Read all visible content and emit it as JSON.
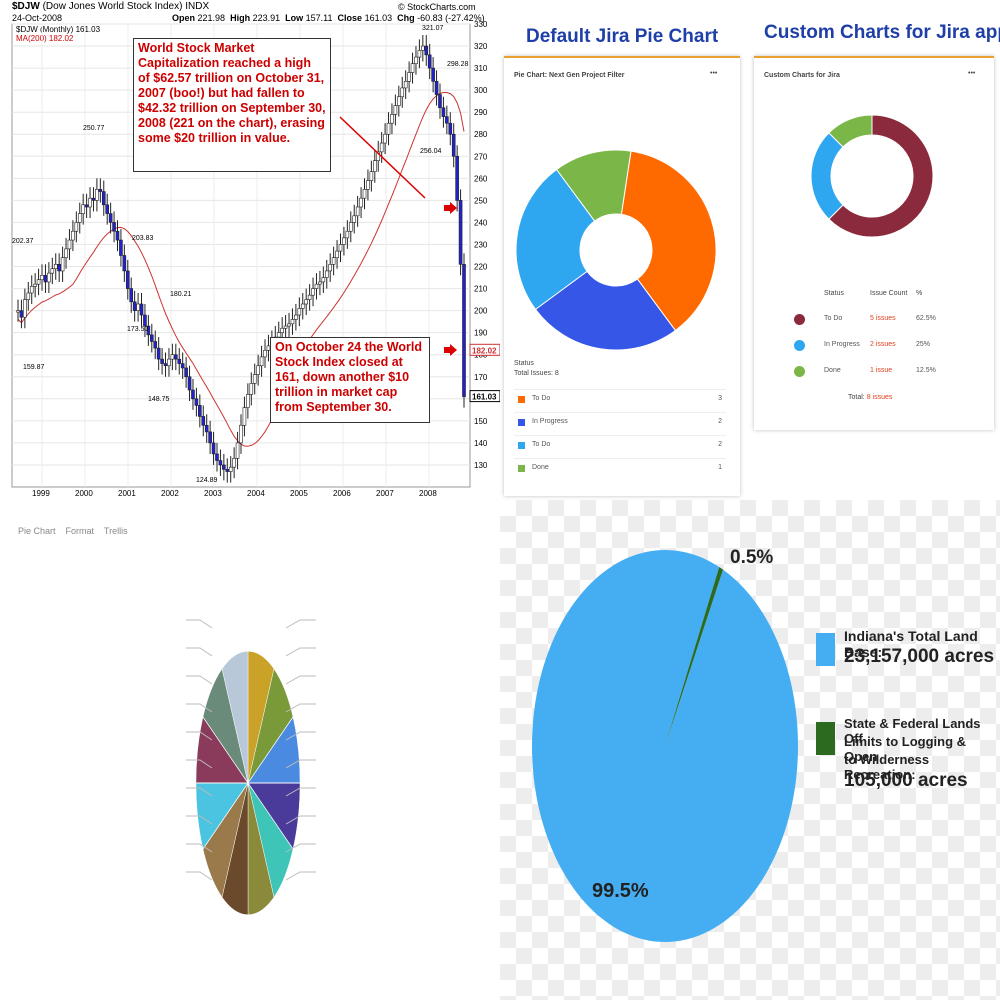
{
  "stock": {
    "symbol": "$DJW",
    "name": "(Dow Jones World Stock Index)",
    "exchange": "INDX",
    "date": "24-Oct-2008",
    "source": "© StockCharts.com",
    "legend_line": "$DJW (Monthly) 161.03",
    "ma_line": "MA(200) 182.02",
    "open_label": "Open",
    "open": "221.98",
    "high_label": "High",
    "high": "223.91",
    "low_label": "Low",
    "low": "157.11",
    "close_label": "Close",
    "close": "161.03",
    "chg_label": "Chg",
    "chg": "-60.83 (-27.42%)",
    "note1": "World Stock Market Capitalization reached a high of $62.57 trillion on October 31, 2007 (boo!) but had fallen to $42.32 trillion on September 30, 2008 (221 on the chart), erasing some $20 trillion in value.",
    "note2": "On October 24 the World Stock Index closed at 161, down another $10 trillion in market cap from September 30.",
    "colors": {
      "bars": "#2222cc",
      "note_text": "#cc0000",
      "arrow": "#dd0000"
    }
  },
  "jira": {
    "default_title": "Default Jira Pie Chart",
    "custom_title": "Custom Charts for Jira app",
    "default_card_title": "Pie Chart: Next Gen Project Filter",
    "default_menu": "•••",
    "default_status_heading": "Status",
    "default_total": "Total Issues: 8",
    "default_rows": [
      {
        "label": "To Do",
        "value": "3",
        "color": "#ff6a00"
      },
      {
        "label": "In Progress",
        "value": "2",
        "color": "#3656e8"
      },
      {
        "label": "To Do",
        "value": "2",
        "color": "#2fa7f0"
      },
      {
        "label": "Done",
        "value": "1",
        "color": "#7ab648"
      }
    ],
    "custom_card_title": "Custom Charts for Jira",
    "custom_menu": "•••",
    "custom_headers": [
      "Status",
      "Issue Count",
      "%"
    ],
    "custom_rows": [
      {
        "label": "To Do",
        "count": "5 issues",
        "pct": "62.5%",
        "color": "#8b2a3c"
      },
      {
        "label": "In Progress",
        "count": "2 issues",
        "pct": "25%",
        "color": "#2fa7f0"
      },
      {
        "label": "Done",
        "count": "1 issue",
        "pct": "12.5%",
        "color": "#7ab648"
      }
    ],
    "custom_total_label": "Total:",
    "custom_total_value": "8 issues"
  },
  "small_pie": {
    "toolbar": [
      "Pie Chart",
      "Format",
      "Trellis"
    ],
    "slice_colors": [
      "#c9a227",
      "#7a9a3a",
      "#4a8ae0",
      "#4a3a9a",
      "#3fc4b8",
      "#8a8a3a",
      "#6a4a2a",
      "#9a7a4a",
      "#4ac4e0",
      "#8a3a5a",
      "#6a8a7a",
      "#b8c8d8"
    ]
  },
  "indiana": {
    "label_small_pct": "0.5%",
    "label_big_pct": "99.5%",
    "legend1_line1": "Indiana's Total Land Base:",
    "legend1_line2": "23,157,000 acres",
    "legend2_line1": "State & Federal Lands Off",
    "legend2_line2": "Limits to Logging & Open",
    "legend2_line3": "to Wilderness Recreation:",
    "legend2_line4": "105,000 acres",
    "colors": {
      "base": "#45aef2",
      "small": "#2c6b1f"
    }
  },
  "chart_data": [
    {
      "type": "bar",
      "title": "$DJW (Dow Jones World Stock Index)",
      "x": [
        "1999",
        "2000",
        "2001",
        "2002",
        "2003",
        "2004",
        "2005",
        "2006",
        "2007",
        "2008"
      ],
      "ylim": [
        120,
        330
      ],
      "yticks": [
        130,
        140,
        150,
        160,
        170,
        180,
        190,
        200,
        210,
        220,
        230,
        240,
        250,
        260,
        270,
        280,
        290,
        300,
        310,
        320,
        330
      ],
      "monthly_close": [
        200,
        197,
        205,
        208,
        211,
        212,
        214,
        216,
        213,
        217,
        219,
        221,
        218,
        224,
        228,
        232,
        236,
        240,
        244,
        248,
        247,
        251,
        250,
        255,
        254,
        248,
        244,
        240,
        236,
        232,
        225,
        218,
        210,
        204,
        200,
        203,
        198,
        193,
        189,
        186,
        183,
        178,
        176,
        175,
        178,
        180,
        178,
        176,
        174,
        170,
        164,
        160,
        157,
        152,
        148,
        145,
        140,
        135,
        132,
        130,
        128,
        127,
        129,
        133,
        140,
        148,
        156,
        162,
        167,
        171,
        175,
        179,
        182,
        184,
        186,
        188,
        190,
        192,
        193,
        194,
        196,
        198,
        201,
        203,
        205,
        207,
        210,
        212,
        213,
        215,
        218,
        221,
        224,
        227,
        230,
        233,
        236,
        240,
        243,
        247,
        251,
        255,
        259,
        263,
        268,
        272,
        276,
        280,
        285,
        289,
        293,
        297,
        301,
        304,
        308,
        312,
        315,
        318,
        320,
        316,
        310,
        304,
        298,
        292,
        288,
        285,
        280,
        270,
        250,
        221,
        161
      ],
      "annotations": [
        "321.07",
        "298.28",
        "256.04",
        "250.77",
        "202.37",
        "203.83",
        "180.21",
        "173.50",
        "159.87",
        "148.75",
        "124.89"
      ],
      "last_labels": [
        "182.02",
        "161.03"
      ]
    },
    {
      "type": "pie",
      "title": "Default Jira Pie Chart",
      "categories": [
        "To Do",
        "In Progress",
        "To Do",
        "Done"
      ],
      "values": [
        3,
        2,
        2,
        1
      ]
    },
    {
      "type": "pie",
      "title": "Custom Charts for Jira app",
      "categories": [
        "To Do",
        "In Progress",
        "Done"
      ],
      "values": [
        5,
        2,
        1
      ]
    },
    {
      "type": "pie",
      "categories": [
        "Indiana's Total Land Base",
        "State & Federal Lands Off Limits to Logging & Open to Wilderness Recreation"
      ],
      "values": [
        99.5,
        0.5
      ]
    }
  ]
}
